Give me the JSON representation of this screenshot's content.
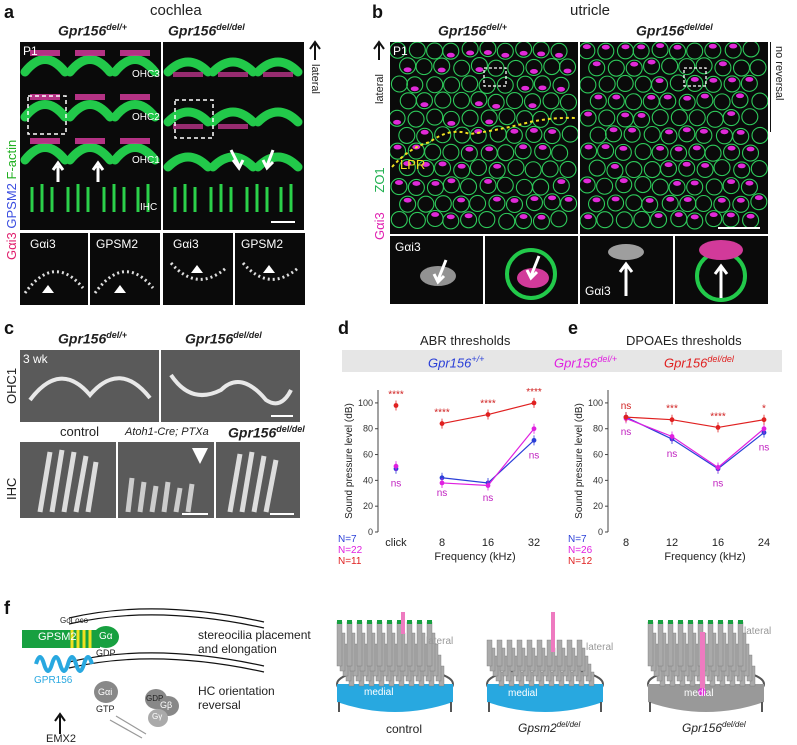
{
  "panels": {
    "a": {
      "letter": "a",
      "heading": "cochlea",
      "col_het": "Gpr156",
      "col_het_sup": "del/+",
      "col_ko": "Gpr156",
      "col_ko_sup": "del/del",
      "age": "P1",
      "rows": [
        "OHC3",
        "OHC2",
        "OHC1",
        "IHC"
      ],
      "side_label": "lateral",
      "vertical_label_parts": [
        "Gαi3",
        "GPSM2",
        "F-actin"
      ],
      "insets": [
        "Gαi3",
        "GPSM2",
        "Gαi3",
        "GPSM2"
      ]
    },
    "b": {
      "letter": "b",
      "heading": "utricle",
      "col_het": "Gpr156",
      "col_het_sup": "del/+",
      "col_ko": "Gpr156",
      "col_ko_sup": "del/del",
      "age": "P1",
      "side_label": "lateral",
      "lpr": "LPR",
      "no_reversal": "no reversal",
      "vertical_label_parts": [
        "Gαi3",
        "ZO1"
      ],
      "insets": [
        "Gαi3",
        "Gαi3"
      ]
    },
    "c": {
      "letter": "c",
      "col_het": "Gpr156",
      "col_het_sup": "del/+",
      "col_ko": "Gpr156",
      "col_ko_sup": "del/del",
      "age": "3 wk",
      "row1": "OHC1",
      "row2": "IHC",
      "col_control": "control",
      "col_ptx": "Atoh1-Cre; PTXa",
      "col_ko2": "Gpr156",
      "col_ko2_sup": "del/del"
    },
    "d": {
      "letter": "d",
      "title": "ABR thresholds",
      "ylabel": "Sound pressure level (dB)",
      "xlabel": "Frequency (kHz)",
      "n_labels": [
        "N=7",
        "N=22",
        "N=11"
      ],
      "sig_top": [
        "****",
        "****",
        "****",
        "****"
      ],
      "sig_ns": [
        "ns",
        "ns",
        "ns",
        "ns"
      ]
    },
    "e": {
      "letter": "e",
      "title": "DPOAEs thresholds",
      "ylabel": "Sound pressure level (dB)",
      "xlabel": "Frequency (kHz)",
      "n_labels": [
        "N=7",
        "N=26",
        "N=12"
      ],
      "sig_top": [
        "ns",
        "***",
        "****",
        "*"
      ],
      "sig_ns": [
        "ns",
        "ns",
        "ns",
        "ns"
      ]
    },
    "f": {
      "letter": "f",
      "gpsm2": "GPSM2",
      "goloco": "GoLoco",
      "galpha": "Gα",
      "gdp": "GDP",
      "gpr156": "GPR156",
      "gai": "Gαi",
      "gtp": "GTP",
      "gb": "Gβ",
      "gg": "Gγ",
      "gdp2": "GDP",
      "emx2": "EMX2",
      "text1_line1": "stereocilia placement",
      "text1_line2": "and elongation",
      "text2_line1": "HC orientation",
      "text2_line2": "reversal",
      "bundle_labels": [
        "control",
        "Gpsm2",
        "Gpr156"
      ],
      "bundle_sups": [
        "",
        "del/del",
        "del/del"
      ],
      "lateral": "lateral",
      "medial": "medial"
    }
  },
  "legend": [
    {
      "name": "Gpr156",
      "sup": "+/+",
      "color": "#2a3fd8"
    },
    {
      "name": "Gpr156",
      "sup": "del/+",
      "color": "#e020e0"
    },
    {
      "name": "Gpr156",
      "sup": "del/del",
      "color": "#e02020"
    }
  ],
  "chart_data": [
    {
      "type": "line",
      "title": "ABR thresholds",
      "xlabel": "Frequency (kHz)",
      "ylabel": "Sound pressure level (dB)",
      "categories": [
        "click",
        "8",
        "16",
        "32"
      ],
      "ylim": [
        0,
        110
      ],
      "yticks": [
        0,
        20,
        40,
        60,
        80,
        100
      ],
      "series": [
        {
          "name": "Gpr156+/+",
          "color": "#2a3fd8",
          "values": [
            null,
            42,
            38,
            71
          ],
          "click": 49
        },
        {
          "name": "Gpr156del/+",
          "color": "#e020e0",
          "values": [
            null,
            38,
            36,
            80
          ],
          "click": 51
        },
        {
          "name": "Gpr156del/del",
          "color": "#e02020",
          "values": [
            null,
            84,
            91,
            100
          ],
          "click": 98
        }
      ]
    },
    {
      "type": "line",
      "title": "DPOAEs thresholds",
      "xlabel": "Frequency (kHz)",
      "ylabel": "Sound pressure level (dB)",
      "categories": [
        "8",
        "12",
        "16",
        "24"
      ],
      "ylim": [
        0,
        110
      ],
      "yticks": [
        0,
        20,
        40,
        60,
        80,
        100
      ],
      "series": [
        {
          "name": "Gpr156+/+",
          "color": "#2a3fd8",
          "values": [
            89,
            72,
            49,
            77
          ]
        },
        {
          "name": "Gpr156del/+",
          "color": "#e020e0",
          "values": [
            88,
            74,
            50,
            80
          ]
        },
        {
          "name": "Gpr156del/del",
          "color": "#e02020",
          "values": [
            89,
            87,
            81,
            87
          ]
        }
      ]
    }
  ]
}
